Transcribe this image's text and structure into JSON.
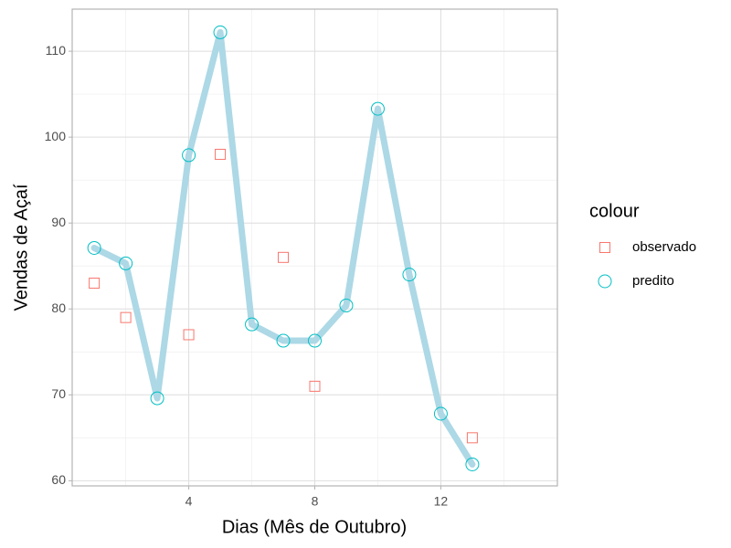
{
  "chart_data": {
    "type": "scatter",
    "x_label": "Dias (Mês de Outubro)",
    "y_label": "Vendas de Açaí",
    "legend_title": "colour",
    "legend_position": "right",
    "grid": true,
    "xlim": [
      0.3,
      15.7
    ],
    "ylim": [
      59.4,
      114.9
    ],
    "xticks": [
      4,
      8,
      12
    ],
    "x_minor_ticks": [
      2,
      6,
      10,
      14
    ],
    "yticks": [
      60,
      70,
      80,
      90,
      100,
      110
    ],
    "y_minor_ticks": [
      65,
      75,
      85,
      95,
      105
    ],
    "series": [
      {
        "name": "observado",
        "color": "#F8766D",
        "marker": "square",
        "x": [
          1,
          2,
          4,
          5,
          7,
          8,
          13
        ],
        "values": [
          83,
          79,
          77,
          98,
          86,
          71,
          65
        ]
      },
      {
        "name": "predito",
        "color": "#00BFC4",
        "marker": "circle",
        "line_color": "#ADD8E6",
        "x": [
          1,
          2,
          3,
          4,
          5,
          6,
          7,
          8,
          9,
          10,
          11,
          12,
          13
        ],
        "values": [
          87.1,
          85.3,
          69.6,
          97.9,
          112.2,
          78.2,
          76.3,
          76.3,
          80.4,
          103.3,
          84.0,
          67.8,
          61.9
        ]
      }
    ]
  }
}
